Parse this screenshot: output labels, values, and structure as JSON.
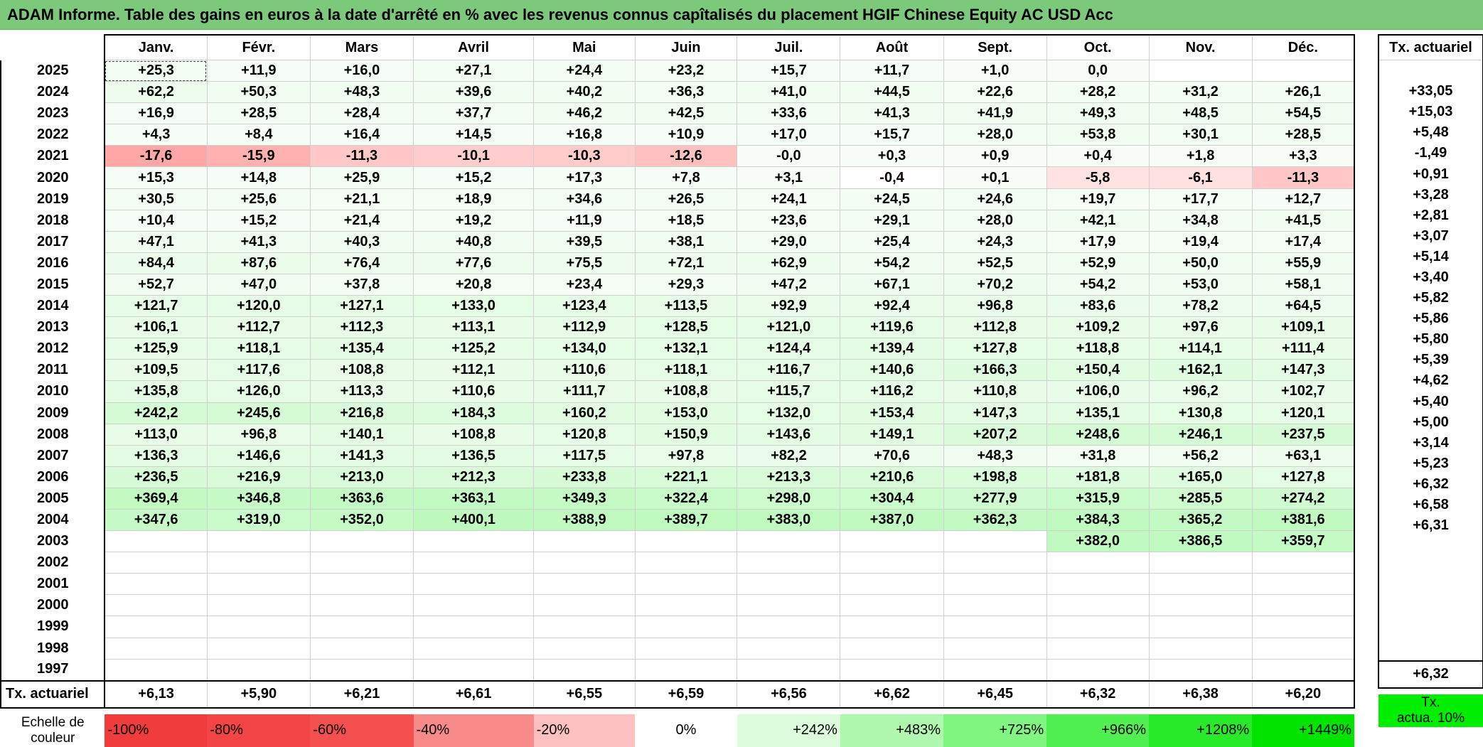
{
  "title": "ADAM Informe. Table des gains en euros à la date d'arrêté en % avec les revenus connus capîtalisés du placement HGIF Chinese Equity AC USD Acc",
  "months": [
    "Janv.",
    "Févr.",
    "Mars",
    "Avril",
    "Mai",
    "Juin",
    "Juil.",
    "Août",
    "Sept.",
    "Oct.",
    "Nov.",
    "Déc."
  ],
  "side_header": "Tx. actuariel",
  "rows": [
    {
      "year": "2025",
      "values": [
        "+25,3",
        "+11,9",
        "+16,0",
        "+27,1",
        "+24,4",
        "+23,2",
        "+15,7",
        "+11,7",
        "+1,0",
        "0,0",
        "",
        ""
      ],
      "rate": ""
    },
    {
      "year": "2024",
      "values": [
        "+62,2",
        "+50,3",
        "+48,3",
        "+39,6",
        "+40,2",
        "+36,3",
        "+41,0",
        "+44,5",
        "+22,6",
        "+28,2",
        "+31,2",
        "+26,1"
      ],
      "rate": "+33,05"
    },
    {
      "year": "2023",
      "values": [
        "+16,9",
        "+28,5",
        "+28,4",
        "+37,7",
        "+46,2",
        "+42,5",
        "+33,6",
        "+41,3",
        "+41,9",
        "+49,3",
        "+48,5",
        "+54,5"
      ],
      "rate": "+15,03"
    },
    {
      "year": "2022",
      "values": [
        "+4,3",
        "+8,4",
        "+16,4",
        "+14,5",
        "+16,8",
        "+10,9",
        "+17,0",
        "+15,7",
        "+28,0",
        "+53,8",
        "+30,1",
        "+28,5"
      ],
      "rate": "+5,48"
    },
    {
      "year": "2021",
      "values": [
        "-17,6",
        "-15,9",
        "-11,3",
        "-10,1",
        "-10,3",
        "-12,6",
        "-0,0",
        "+0,3",
        "+0,9",
        "+0,4",
        "+1,8",
        "+3,3"
      ],
      "rate": "-1,49"
    },
    {
      "year": "2020",
      "values": [
        "+15,3",
        "+14,8",
        "+25,9",
        "+15,2",
        "+17,3",
        "+7,8",
        "+3,1",
        "-0,4",
        "+0,1",
        "-5,8",
        "-6,1",
        "-11,3"
      ],
      "rate": "+0,91"
    },
    {
      "year": "2019",
      "values": [
        "+30,5",
        "+25,6",
        "+21,1",
        "+18,9",
        "+34,6",
        "+26,5",
        "+24,1",
        "+24,5",
        "+24,6",
        "+19,7",
        "+17,7",
        "+12,7"
      ],
      "rate": "+3,28"
    },
    {
      "year": "2018",
      "values": [
        "+10,4",
        "+15,2",
        "+21,4",
        "+19,2",
        "+11,9",
        "+18,5",
        "+23,6",
        "+29,1",
        "+28,0",
        "+42,1",
        "+34,8",
        "+41,5"
      ],
      "rate": "+2,81"
    },
    {
      "year": "2017",
      "values": [
        "+47,1",
        "+41,3",
        "+40,3",
        "+40,8",
        "+39,5",
        "+38,1",
        "+29,0",
        "+25,4",
        "+24,3",
        "+17,9",
        "+19,4",
        "+17,4"
      ],
      "rate": "+3,07"
    },
    {
      "year": "2016",
      "values": [
        "+84,4",
        "+87,6",
        "+76,4",
        "+77,6",
        "+75,5",
        "+72,1",
        "+62,9",
        "+54,2",
        "+52,5",
        "+52,9",
        "+50,0",
        "+55,9"
      ],
      "rate": "+5,14"
    },
    {
      "year": "2015",
      "values": [
        "+52,7",
        "+47,0",
        "+37,8",
        "+20,8",
        "+23,4",
        "+29,3",
        "+47,2",
        "+67,1",
        "+70,2",
        "+54,2",
        "+53,0",
        "+58,1"
      ],
      "rate": "+3,40"
    },
    {
      "year": "2014",
      "values": [
        "+121,7",
        "+120,0",
        "+127,1",
        "+133,0",
        "+123,4",
        "+113,5",
        "+92,9",
        "+92,4",
        "+96,8",
        "+83,6",
        "+78,2",
        "+64,5"
      ],
      "rate": "+5,82"
    },
    {
      "year": "2013",
      "values": [
        "+106,1",
        "+112,7",
        "+112,3",
        "+113,1",
        "+112,9",
        "+128,5",
        "+121,0",
        "+119,6",
        "+112,8",
        "+109,2",
        "+97,6",
        "+109,1"
      ],
      "rate": "+5,86"
    },
    {
      "year": "2012",
      "values": [
        "+125,9",
        "+118,1",
        "+135,4",
        "+125,2",
        "+134,0",
        "+132,1",
        "+124,4",
        "+139,4",
        "+127,8",
        "+118,8",
        "+114,1",
        "+111,4"
      ],
      "rate": "+5,80"
    },
    {
      "year": "2011",
      "values": [
        "+109,5",
        "+117,6",
        "+108,8",
        "+112,1",
        "+110,6",
        "+118,1",
        "+116,7",
        "+140,6",
        "+166,3",
        "+150,4",
        "+162,1",
        "+147,3"
      ],
      "rate": "+5,39"
    },
    {
      "year": "2010",
      "values": [
        "+135,8",
        "+126,0",
        "+113,3",
        "+110,6",
        "+111,7",
        "+108,8",
        "+115,7",
        "+116,2",
        "+110,8",
        "+106,0",
        "+96,2",
        "+102,7"
      ],
      "rate": "+4,62"
    },
    {
      "year": "2009",
      "values": [
        "+242,2",
        "+245,6",
        "+216,8",
        "+184,3",
        "+160,2",
        "+153,0",
        "+132,0",
        "+153,4",
        "+147,3",
        "+135,1",
        "+130,8",
        "+120,1"
      ],
      "rate": "+5,40"
    },
    {
      "year": "2008",
      "values": [
        "+113,0",
        "+96,8",
        "+140,1",
        "+108,8",
        "+120,8",
        "+150,9",
        "+143,6",
        "+149,1",
        "+207,2",
        "+248,6",
        "+246,1",
        "+237,5"
      ],
      "rate": "+5,00"
    },
    {
      "year": "2007",
      "values": [
        "+136,3",
        "+146,6",
        "+141,3",
        "+136,5",
        "+117,5",
        "+97,8",
        "+82,2",
        "+70,6",
        "+48,3",
        "+31,8",
        "+56,2",
        "+63,1"
      ],
      "rate": "+3,14"
    },
    {
      "year": "2006",
      "values": [
        "+236,5",
        "+216,9",
        "+213,0",
        "+212,3",
        "+233,8",
        "+221,1",
        "+213,3",
        "+210,6",
        "+198,8",
        "+181,8",
        "+165,0",
        "+127,8"
      ],
      "rate": "+5,23"
    },
    {
      "year": "2005",
      "values": [
        "+369,4",
        "+346,8",
        "+363,6",
        "+363,1",
        "+349,3",
        "+322,4",
        "+298,0",
        "+304,4",
        "+277,9",
        "+315,9",
        "+285,5",
        "+274,2"
      ],
      "rate": "+6,32"
    },
    {
      "year": "2004",
      "values": [
        "+347,6",
        "+319,0",
        "+352,0",
        "+400,1",
        "+388,9",
        "+389,7",
        "+383,0",
        "+387,0",
        "+362,3",
        "+384,3",
        "+365,2",
        "+381,6"
      ],
      "rate": "+6,58"
    },
    {
      "year": "2003",
      "values": [
        "",
        "",
        "",
        "",
        "",
        "",
        "",
        "",
        "",
        "+382,0",
        "+386,5",
        "+359,7"
      ],
      "rate": "+6,31"
    },
    {
      "year": "2002",
      "values": [
        "",
        "",
        "",
        "",
        "",
        "",
        "",
        "",
        "",
        "",
        "",
        ""
      ],
      "rate": ""
    },
    {
      "year": "2001",
      "values": [
        "",
        "",
        "",
        "",
        "",
        "",
        "",
        "",
        "",
        "",
        "",
        ""
      ],
      "rate": ""
    },
    {
      "year": "2000",
      "values": [
        "",
        "",
        "",
        "",
        "",
        "",
        "",
        "",
        "",
        "",
        "",
        ""
      ],
      "rate": ""
    },
    {
      "year": "1999",
      "values": [
        "",
        "",
        "",
        "",
        "",
        "",
        "",
        "",
        "",
        "",
        "",
        ""
      ],
      "rate": ""
    },
    {
      "year": "1998",
      "values": [
        "",
        "",
        "",
        "",
        "",
        "",
        "",
        "",
        "",
        "",
        "",
        ""
      ],
      "rate": ""
    },
    {
      "year": "1997",
      "values": [
        "",
        "",
        "",
        "",
        "",
        "",
        "",
        "",
        "",
        "",
        "",
        ""
      ],
      "rate": ""
    }
  ],
  "actuarial_row": {
    "label": "Tx. actuariel",
    "values": [
      "+6,13",
      "+5,90",
      "+6,21",
      "+6,61",
      "+6,55",
      "+6,59",
      "+6,56",
      "+6,62",
      "+6,45",
      "+6,32",
      "+6,38",
      "+6,20"
    ],
    "total": "+6,32"
  },
  "scale": {
    "label_line1": "Echelle de",
    "label_line2": "couleur",
    "items": [
      {
        "text": "-100%",
        "color": "#f03c3c",
        "align": "left"
      },
      {
        "text": "-80%",
        "color": "#f34545",
        "align": "left"
      },
      {
        "text": "-60%",
        "color": "#f45050",
        "align": "left"
      },
      {
        "text": "-40%",
        "color": "#f88a8a",
        "align": "left"
      },
      {
        "text": "-20%",
        "color": "#fcc0c0",
        "align": "left"
      },
      {
        "text": "0%",
        "color": "#ffffff",
        "align": "center"
      },
      {
        "text": "+242%",
        "color": "#dcfcdc",
        "align": "right"
      },
      {
        "text": "+483%",
        "color": "#b0f7b0",
        "align": "right"
      },
      {
        "text": "+725%",
        "color": "#80f580",
        "align": "right"
      },
      {
        "text": "+966%",
        "color": "#50f050",
        "align": "right"
      },
      {
        "text": "+1208%",
        "color": "#28ea28",
        "align": "right"
      },
      {
        "text": "+1449%",
        "color": "#00e400",
        "align": "right"
      }
    ],
    "side_line1": "Tx.",
    "side_line2": "actua. 10%"
  }
}
